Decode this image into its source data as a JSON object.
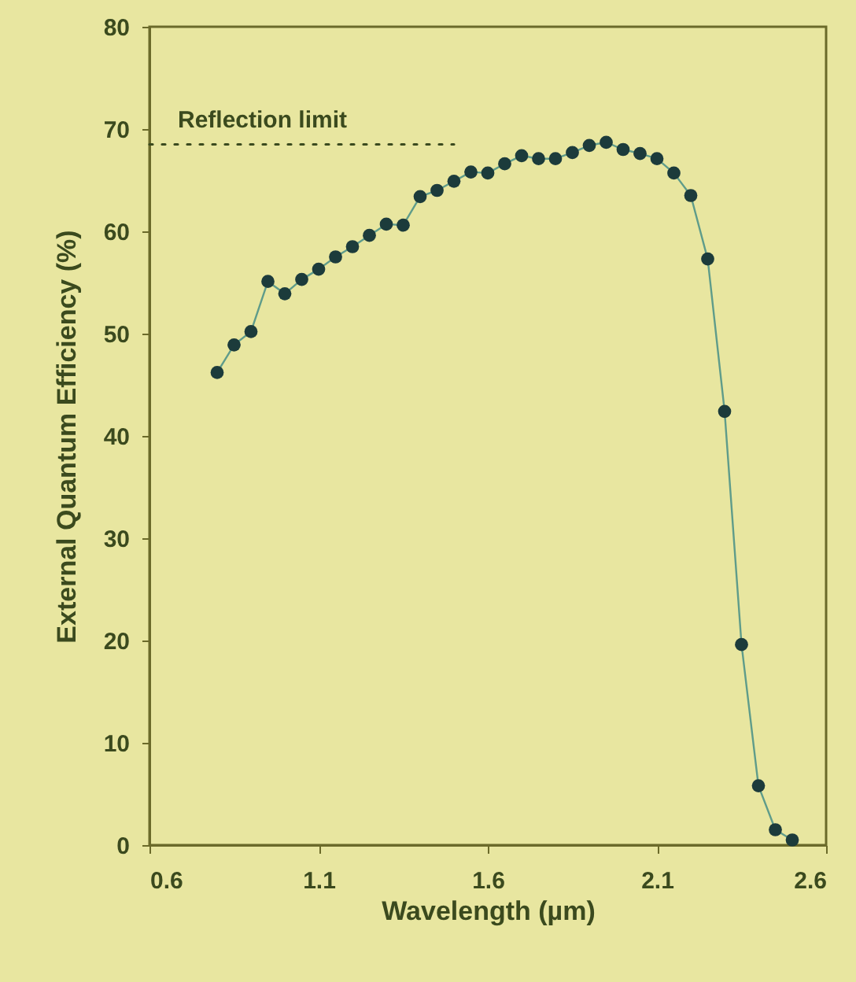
{
  "chart_data": {
    "type": "line",
    "xlabel": "Wavelength (µm)",
    "ylabel": "External Quantum Efficiency (%)",
    "xlim": [
      0.6,
      2.6
    ],
    "xticks": [
      0.6,
      1.1,
      1.6,
      2.1,
      2.6
    ],
    "ylim": [
      0,
      80
    ],
    "yticks": [
      0,
      10,
      20,
      30,
      40,
      50,
      60,
      70,
      80
    ],
    "grid": false,
    "series": [
      {
        "color": "#1c3b3b",
        "marker": "circle",
        "line_style": "solid",
        "x": [
          0.8,
          0.85,
          0.9,
          0.95,
          1.0,
          1.05,
          1.1,
          1.15,
          1.2,
          1.25,
          1.3,
          1.35,
          1.4,
          1.45,
          1.5,
          1.55,
          1.6,
          1.65,
          1.7,
          1.75,
          1.8,
          1.85,
          1.9,
          1.95,
          2.0,
          2.05,
          2.1,
          2.15,
          2.2,
          2.25,
          2.3,
          2.35,
          2.4,
          2.45,
          2.5
        ],
        "values": [
          46.2,
          48.9,
          50.2,
          55.1,
          53.9,
          55.3,
          56.3,
          57.5,
          58.5,
          59.6,
          60.7,
          60.6,
          63.4,
          64.0,
          64.9,
          65.8,
          65.7,
          66.6,
          67.4,
          67.1,
          67.1,
          67.7,
          68.4,
          68.7,
          68.0,
          67.6,
          67.1,
          65.7,
          63.5,
          57.3,
          42.4,
          19.6,
          5.8,
          1.5,
          0.5
        ]
      },
      {
        "name": "Reflection limit",
        "color": "#3b4a1e",
        "marker": "none",
        "line_style": "dotted",
        "x": [
          0.6,
          1.5
        ],
        "values": [
          68.5,
          68.5
        ]
      }
    ]
  }
}
